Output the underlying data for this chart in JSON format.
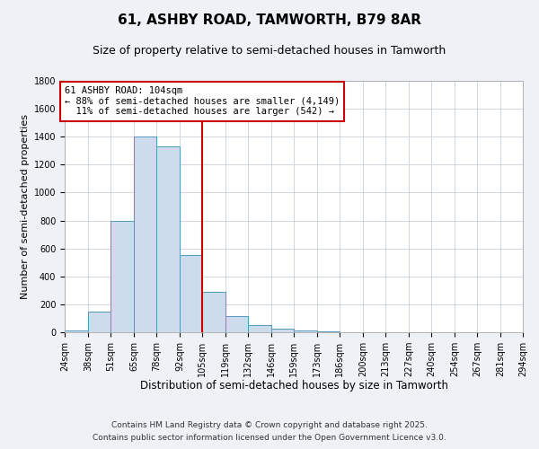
{
  "title": "61, ASHBY ROAD, TAMWORTH, B79 8AR",
  "subtitle": "Size of property relative to semi-detached houses in Tamworth",
  "xlabel": "Distribution of semi-detached houses by size in Tamworth",
  "ylabel": "Number of semi-detached properties",
  "bin_edges": [
    24,
    38,
    51,
    65,
    78,
    92,
    105,
    119,
    132,
    146,
    159,
    173,
    186,
    200,
    213,
    227,
    240,
    254,
    267,
    281,
    294
  ],
  "bar_heights": [
    10,
    150,
    800,
    1400,
    1330,
    550,
    290,
    115,
    50,
    25,
    10,
    5,
    2,
    1,
    0,
    0,
    0,
    0,
    0,
    1
  ],
  "bar_color": "#ccdcec",
  "bar_edge_color": "#5599bb",
  "vline_x": 105,
  "vline_color": "#cc0000",
  "annotation_text": "61 ASHBY ROAD: 104sqm\n← 88% of semi-detached houses are smaller (4,149)\n  11% of semi-detached houses are larger (542) →",
  "annotation_box_color": "#ffffff",
  "annotation_box_edge_color": "#cc0000",
  "ylim": [
    0,
    1800
  ],
  "yticks": [
    0,
    200,
    400,
    600,
    800,
    1000,
    1200,
    1400,
    1600,
    1800
  ],
  "tick_labels": [
    "24sqm",
    "38sqm",
    "51sqm",
    "65sqm",
    "78sqm",
    "92sqm",
    "105sqm",
    "119sqm",
    "132sqm",
    "146sqm",
    "159sqm",
    "173sqm",
    "186sqm",
    "200sqm",
    "213sqm",
    "227sqm",
    "240sqm",
    "254sqm",
    "267sqm",
    "281sqm",
    "294sqm"
  ],
  "footnote1": "Contains HM Land Registry data © Crown copyright and database right 2025.",
  "footnote2": "Contains public sector information licensed under the Open Government Licence v3.0.",
  "background_color": "#eef2f6",
  "plot_background_color": "#ffffff",
  "grid_color": "#c8d0d8",
  "title_fontsize": 11,
  "subtitle_fontsize": 9,
  "xlabel_fontsize": 8.5,
  "ylabel_fontsize": 8,
  "tick_fontsize": 7,
  "annotation_fontsize": 7.5,
  "footnote_fontsize": 6.5
}
